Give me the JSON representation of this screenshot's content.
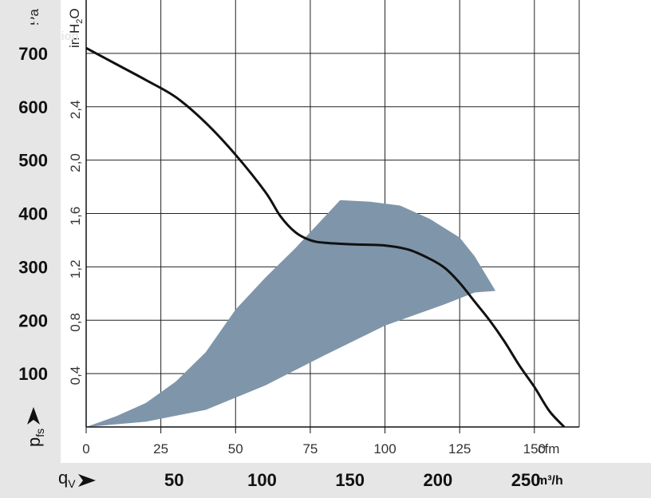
{
  "chart_data": {
    "type": "line",
    "xlabel_symbol": "q",
    "xlabel_sub": "V",
    "ylabel_symbol": "p",
    "ylabel_sub": "fs",
    "primary_y": {
      "unit": "Pa",
      "range": [
        0,
        700
      ],
      "ticks": [
        "100",
        "200",
        "300",
        "400",
        "500",
        "600",
        "700"
      ]
    },
    "secondary_y": {
      "unit_text": "in H",
      "unit_sub": "2",
      "unit_tail": "O",
      "ticks": [
        "0,4",
        "0,8",
        "1,2",
        "1,6",
        "2,0",
        "2,4"
      ]
    },
    "primary_x": {
      "unit": "cfm",
      "range": [
        0,
        165
      ],
      "ticks": [
        "0",
        "25",
        "50",
        "75",
        "100",
        "125",
        "150"
      ]
    },
    "secondary_x": {
      "unit": "m³/h",
      "ticks": [
        "50",
        "100",
        "150",
        "200",
        "250"
      ]
    },
    "grid": true,
    "series": [
      {
        "kind": "line",
        "color": "#111111",
        "points": [
          [
            0,
            710
          ],
          [
            10,
            680
          ],
          [
            20,
            650
          ],
          [
            30,
            618
          ],
          [
            40,
            570
          ],
          [
            50,
            510
          ],
          [
            60,
            440
          ],
          [
            65,
            395
          ],
          [
            70,
            365
          ],
          [
            75,
            350
          ],
          [
            80,
            345
          ],
          [
            90,
            342
          ],
          [
            100,
            340
          ],
          [
            108,
            332
          ],
          [
            115,
            315
          ],
          [
            120,
            298
          ],
          [
            125,
            270
          ],
          [
            130,
            235
          ],
          [
            135,
            200
          ],
          [
            140,
            160
          ],
          [
            145,
            115
          ],
          [
            150,
            75
          ],
          [
            155,
            30
          ],
          [
            160,
            0
          ]
        ]
      },
      {
        "kind": "area",
        "color": "#7f95aa",
        "upper": [
          [
            0,
            0
          ],
          [
            10,
            20
          ],
          [
            20,
            45
          ],
          [
            30,
            85
          ],
          [
            40,
            140
          ],
          [
            50,
            220
          ],
          [
            60,
            280
          ],
          [
            70,
            335
          ],
          [
            80,
            395
          ],
          [
            85,
            425
          ],
          [
            95,
            422
          ],
          [
            105,
            415
          ],
          [
            115,
            390
          ],
          [
            125,
            355
          ],
          [
            130,
            320
          ],
          [
            137,
            255
          ]
        ],
        "lower": [
          [
            0,
            0
          ],
          [
            20,
            10
          ],
          [
            40,
            32
          ],
          [
            60,
            78
          ],
          [
            80,
            135
          ],
          [
            100,
            190
          ],
          [
            120,
            230
          ],
          [
            130,
            252
          ],
          [
            137,
            255
          ]
        ]
      }
    ]
  }
}
